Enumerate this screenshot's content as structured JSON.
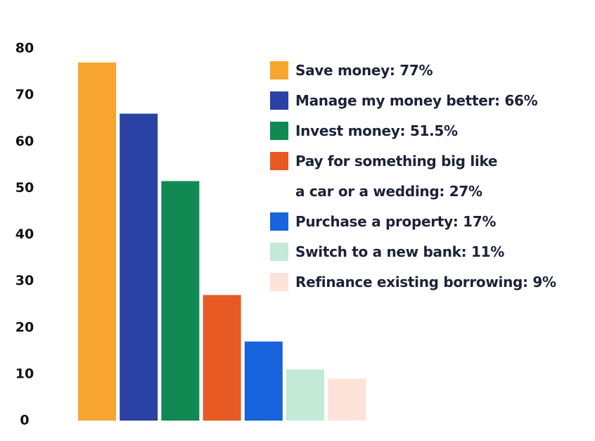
{
  "chart_data": {
    "type": "bar",
    "series": [
      {
        "name": "Save money: 77%",
        "color": "#f7a530",
        "values": [
          77
        ]
      },
      {
        "name": "Manage my money better: 66%",
        "color": "#2a42a3",
        "values": [
          66
        ]
      },
      {
        "name": "Invest money: 51.5%",
        "color": "#108a52",
        "values": [
          51.5
        ]
      },
      {
        "name": "Pay for something big like\na car or a wedding: 27%",
        "color": "#e85a24",
        "values": [
          27
        ]
      },
      {
        "name": "Purchase a property: 17%",
        "color": "#1764dc",
        "values": [
          17
        ]
      },
      {
        "name": "Switch to a new bank: 11%",
        "color": "#c2ead7",
        "values": [
          11
        ]
      },
      {
        "name": "Refinance existing borrowing: 9%",
        "color": "#fde2da",
        "values": [
          9
        ]
      }
    ],
    "ylim": [
      0,
      80
    ],
    "yticks": [
      0,
      10,
      20,
      30,
      40,
      50,
      60,
      70,
      80
    ],
    "grid": false
  }
}
